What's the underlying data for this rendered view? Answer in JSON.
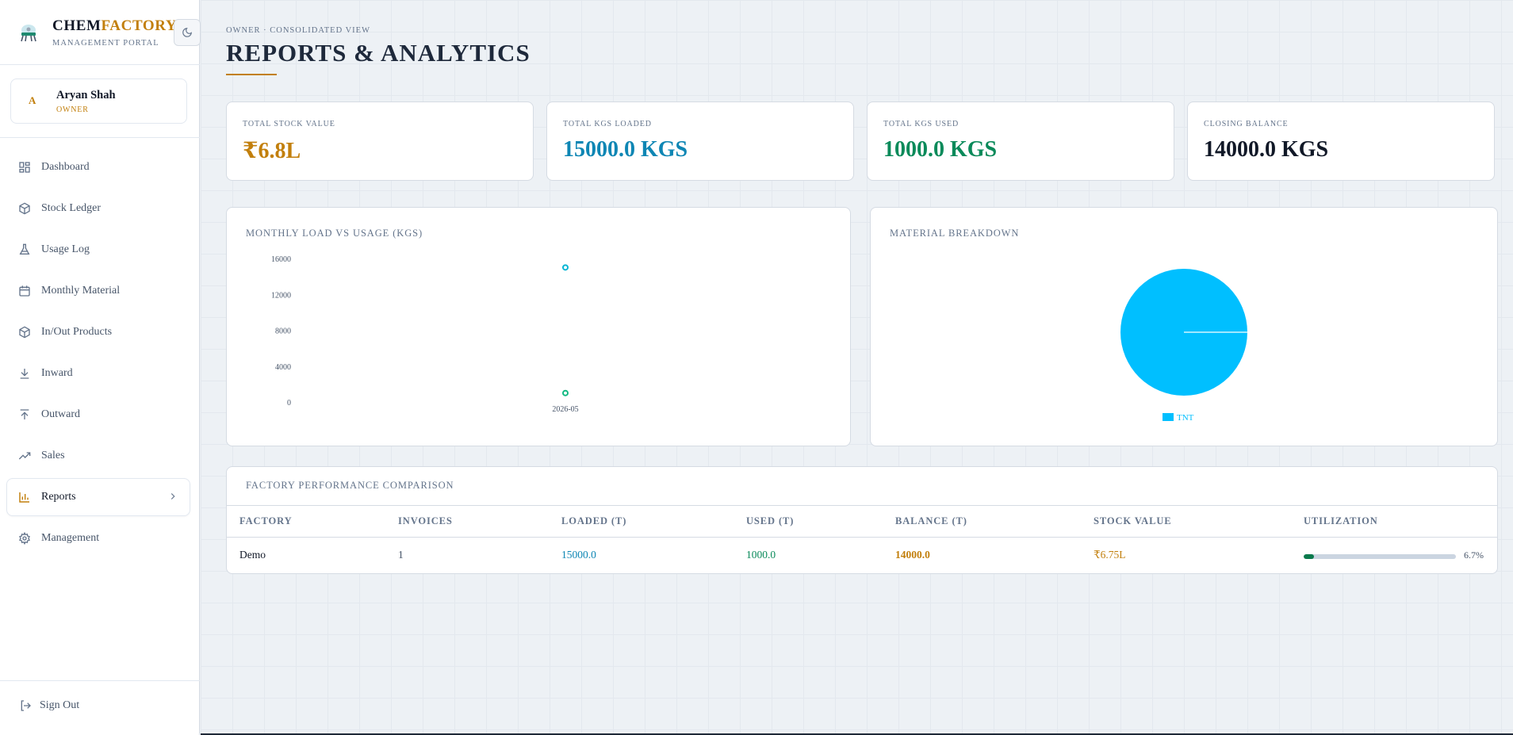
{
  "brand": {
    "name_part1": "CHEM",
    "name_part2": "FACTORY",
    "subtitle": "MANAGEMENT PORTAL"
  },
  "user": {
    "initial": "A",
    "name": "Aryan Shah",
    "role": "OWNER"
  },
  "nav": [
    {
      "label": "Dashboard",
      "icon": "dashboard-icon"
    },
    {
      "label": "Stock Ledger",
      "icon": "box-icon"
    },
    {
      "label": "Usage Log",
      "icon": "flask-icon"
    },
    {
      "label": "Monthly Material",
      "icon": "calendar-icon"
    },
    {
      "label": "In/Out Products",
      "icon": "box-icon"
    },
    {
      "label": "Inward",
      "icon": "arrow-down-icon"
    },
    {
      "label": "Outward",
      "icon": "arrow-up-icon"
    },
    {
      "label": "Sales",
      "icon": "trend-icon"
    },
    {
      "label": "Reports",
      "icon": "bar-chart-icon",
      "active": true
    },
    {
      "label": "Management",
      "icon": "gear-icon"
    }
  ],
  "signout": "Sign Out",
  "header": {
    "breadcrumb": "OWNER · CONSOLIDATED VIEW",
    "title": "REPORTS & ANALYTICS"
  },
  "stats": [
    {
      "label": "TOTAL STOCK VALUE",
      "value": "₹6.8L",
      "color": "#c27f0c"
    },
    {
      "label": "TOTAL KGS LOADED",
      "value": "15000.0 KGS",
      "color": "#0e86b4"
    },
    {
      "label": "TOTAL KGS USED",
      "value": "1000.0 KGS",
      "color": "#0a8a5a"
    },
    {
      "label": "CLOSING BALANCE",
      "value": "14000.0 KGS",
      "color": "#111827"
    }
  ],
  "line_chart": {
    "title": "MONTHLY LOAD VS USAGE (KGS)"
  },
  "pie_chart": {
    "title": "MATERIAL BREAKDOWN"
  },
  "chart_data": [
    {
      "type": "scatter",
      "title": "MONTHLY LOAD VS USAGE (KGS)",
      "x": [
        "2026-05"
      ],
      "series": [
        {
          "values": [
            15000
          ],
          "color": "#06b6d4"
        },
        {
          "values": [
            1000
          ],
          "color": "#10b981"
        }
      ],
      "yticks": [
        "16000",
        "12000",
        "8000",
        "4000",
        "0"
      ],
      "ylim": [
        0,
        16000
      ],
      "grid": false
    },
    {
      "type": "pie",
      "title": "MATERIAL BREAKDOWN",
      "labels": [
        "TNT"
      ],
      "values": [
        100
      ],
      "colors": [
        "#00bfff"
      ],
      "legend": "bottom"
    }
  ],
  "table": {
    "title": "FACTORY PERFORMANCE COMPARISON",
    "columns": [
      "FACTORY",
      "INVOICES",
      "LOADED (T)",
      "USED (T)",
      "BALANCE (T)",
      "STOCK VALUE",
      "UTILIZATION"
    ],
    "rows": [
      {
        "factory": "Demo",
        "invoices": "1",
        "loaded": "15000.0",
        "used": "1000.0",
        "balance": "14000.0",
        "stock_value": "₹6.75L",
        "utilization_pct": "6.7%",
        "utilization": 0.067
      }
    ]
  }
}
